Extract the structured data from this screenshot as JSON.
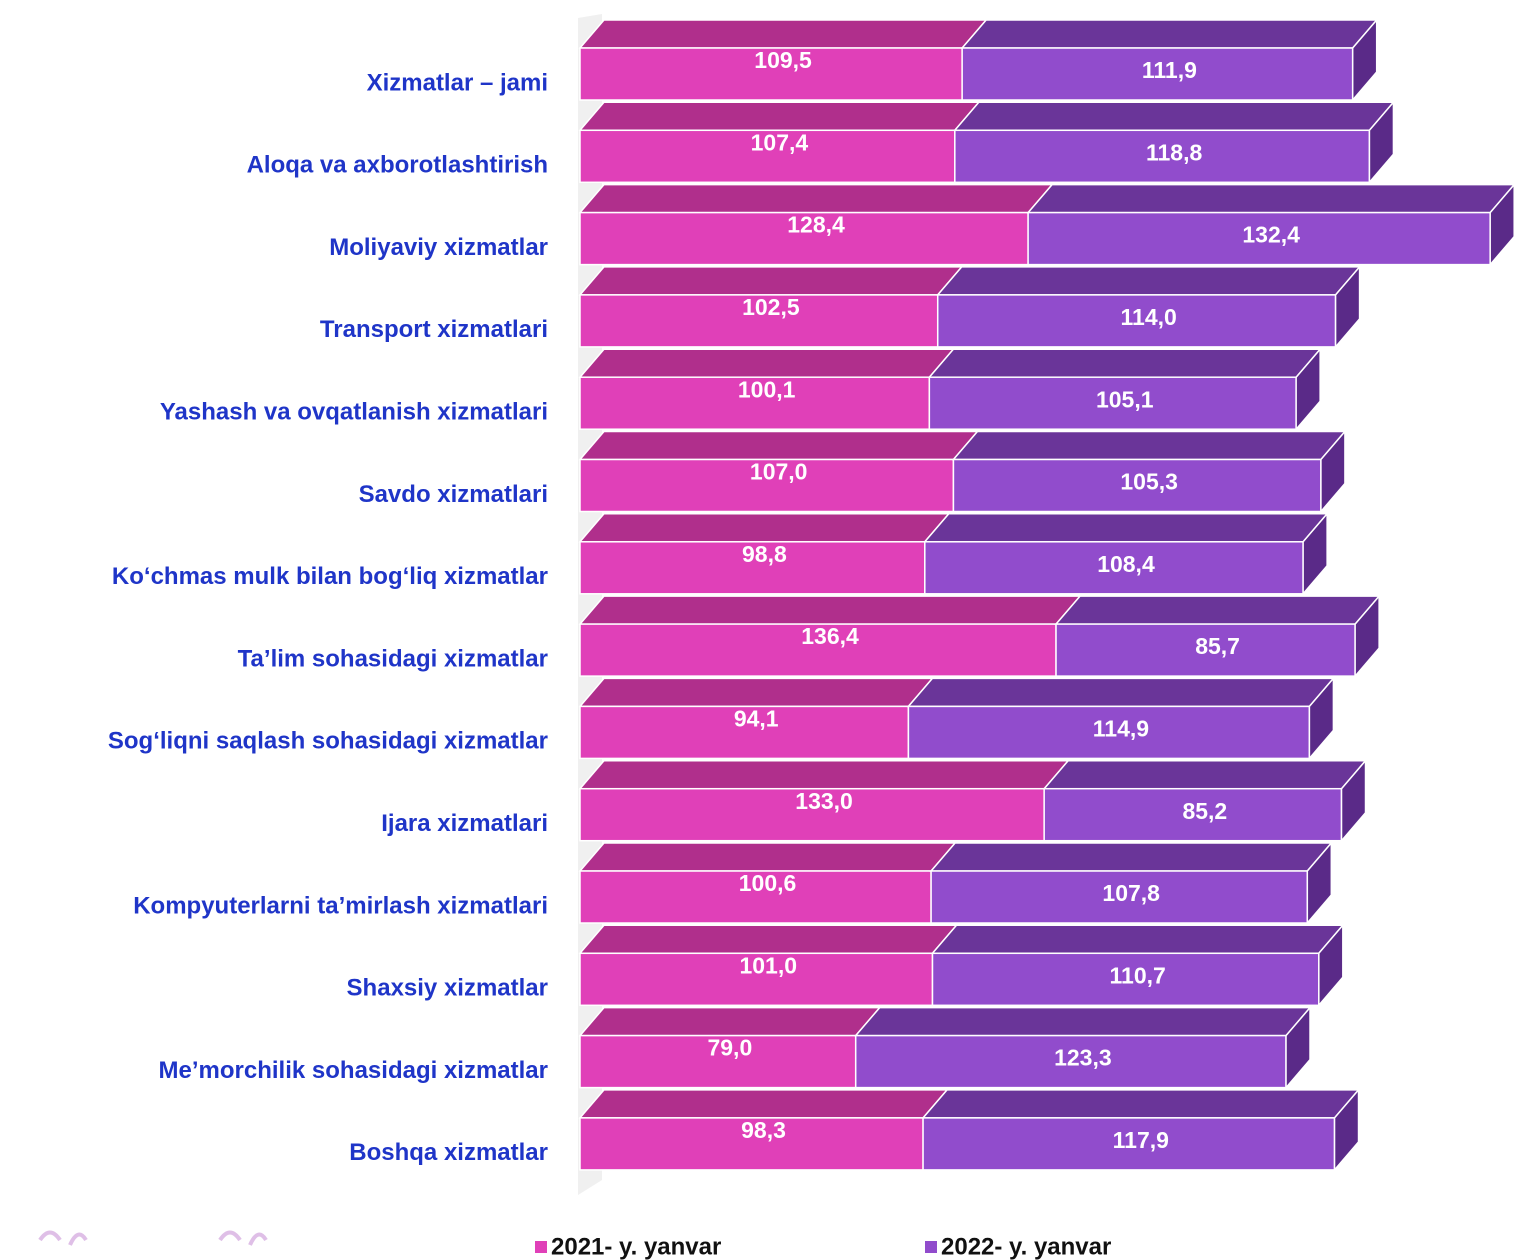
{
  "chart_data": {
    "type": "stacked-bar-3d",
    "categories": [
      "Xizmatlar – jami",
      "Aloqa va axborotlashtirish",
      "Moliyaviy xizmatlar",
      "Transport xizmatlari",
      "Yashash va ovqatlanish xizmatlari",
      "Savdo xizmatlari",
      "Ko‘chmas mulk bilan bog‘liq xizmatlar",
      "Ta’lim sohasidagi xizmatlar",
      "Sog‘liqni saqlash sohasidagi xizmatlar",
      "Ijara xizmatlari",
      "Kompyuterlarni ta’mirlash xizmatlari",
      "Shaxsiy xizmatlar",
      "Me’morchilik sohasidagi xizmatlar",
      "Boshqa xizmatlar"
    ],
    "series": [
      {
        "name": "2021- y. yanvar",
        "color": "#e040b8",
        "values": [
          109.5,
          107.4,
          128.4,
          102.5,
          100.1,
          107.0,
          98.8,
          136.4,
          94.1,
          133.0,
          100.6,
          101.0,
          79.0,
          98.3
        ],
        "value_labels": [
          "109,5",
          "107,4",
          "128,4",
          "102,5",
          "100,1",
          "107,0",
          "98,8",
          "136,4",
          "94,1",
          "133,0",
          "100,6",
          "101,0",
          "79,0",
          "98,3"
        ]
      },
      {
        "name": "2022- y. yanvar",
        "color": "#914ccc",
        "values": [
          111.9,
          118.8,
          132.4,
          114.0,
          105.1,
          105.3,
          108.4,
          85.7,
          114.9,
          85.2,
          107.8,
          110.7,
          123.3,
          117.9
        ],
        "value_labels": [
          "111,9",
          "118,8",
          "132,4",
          "114,0",
          "105,1",
          "105,3",
          "108,4",
          "85,7",
          "114,9",
          "85,2",
          "107,8",
          "110,7",
          "123,3",
          "117,9"
        ]
      }
    ]
  }
}
